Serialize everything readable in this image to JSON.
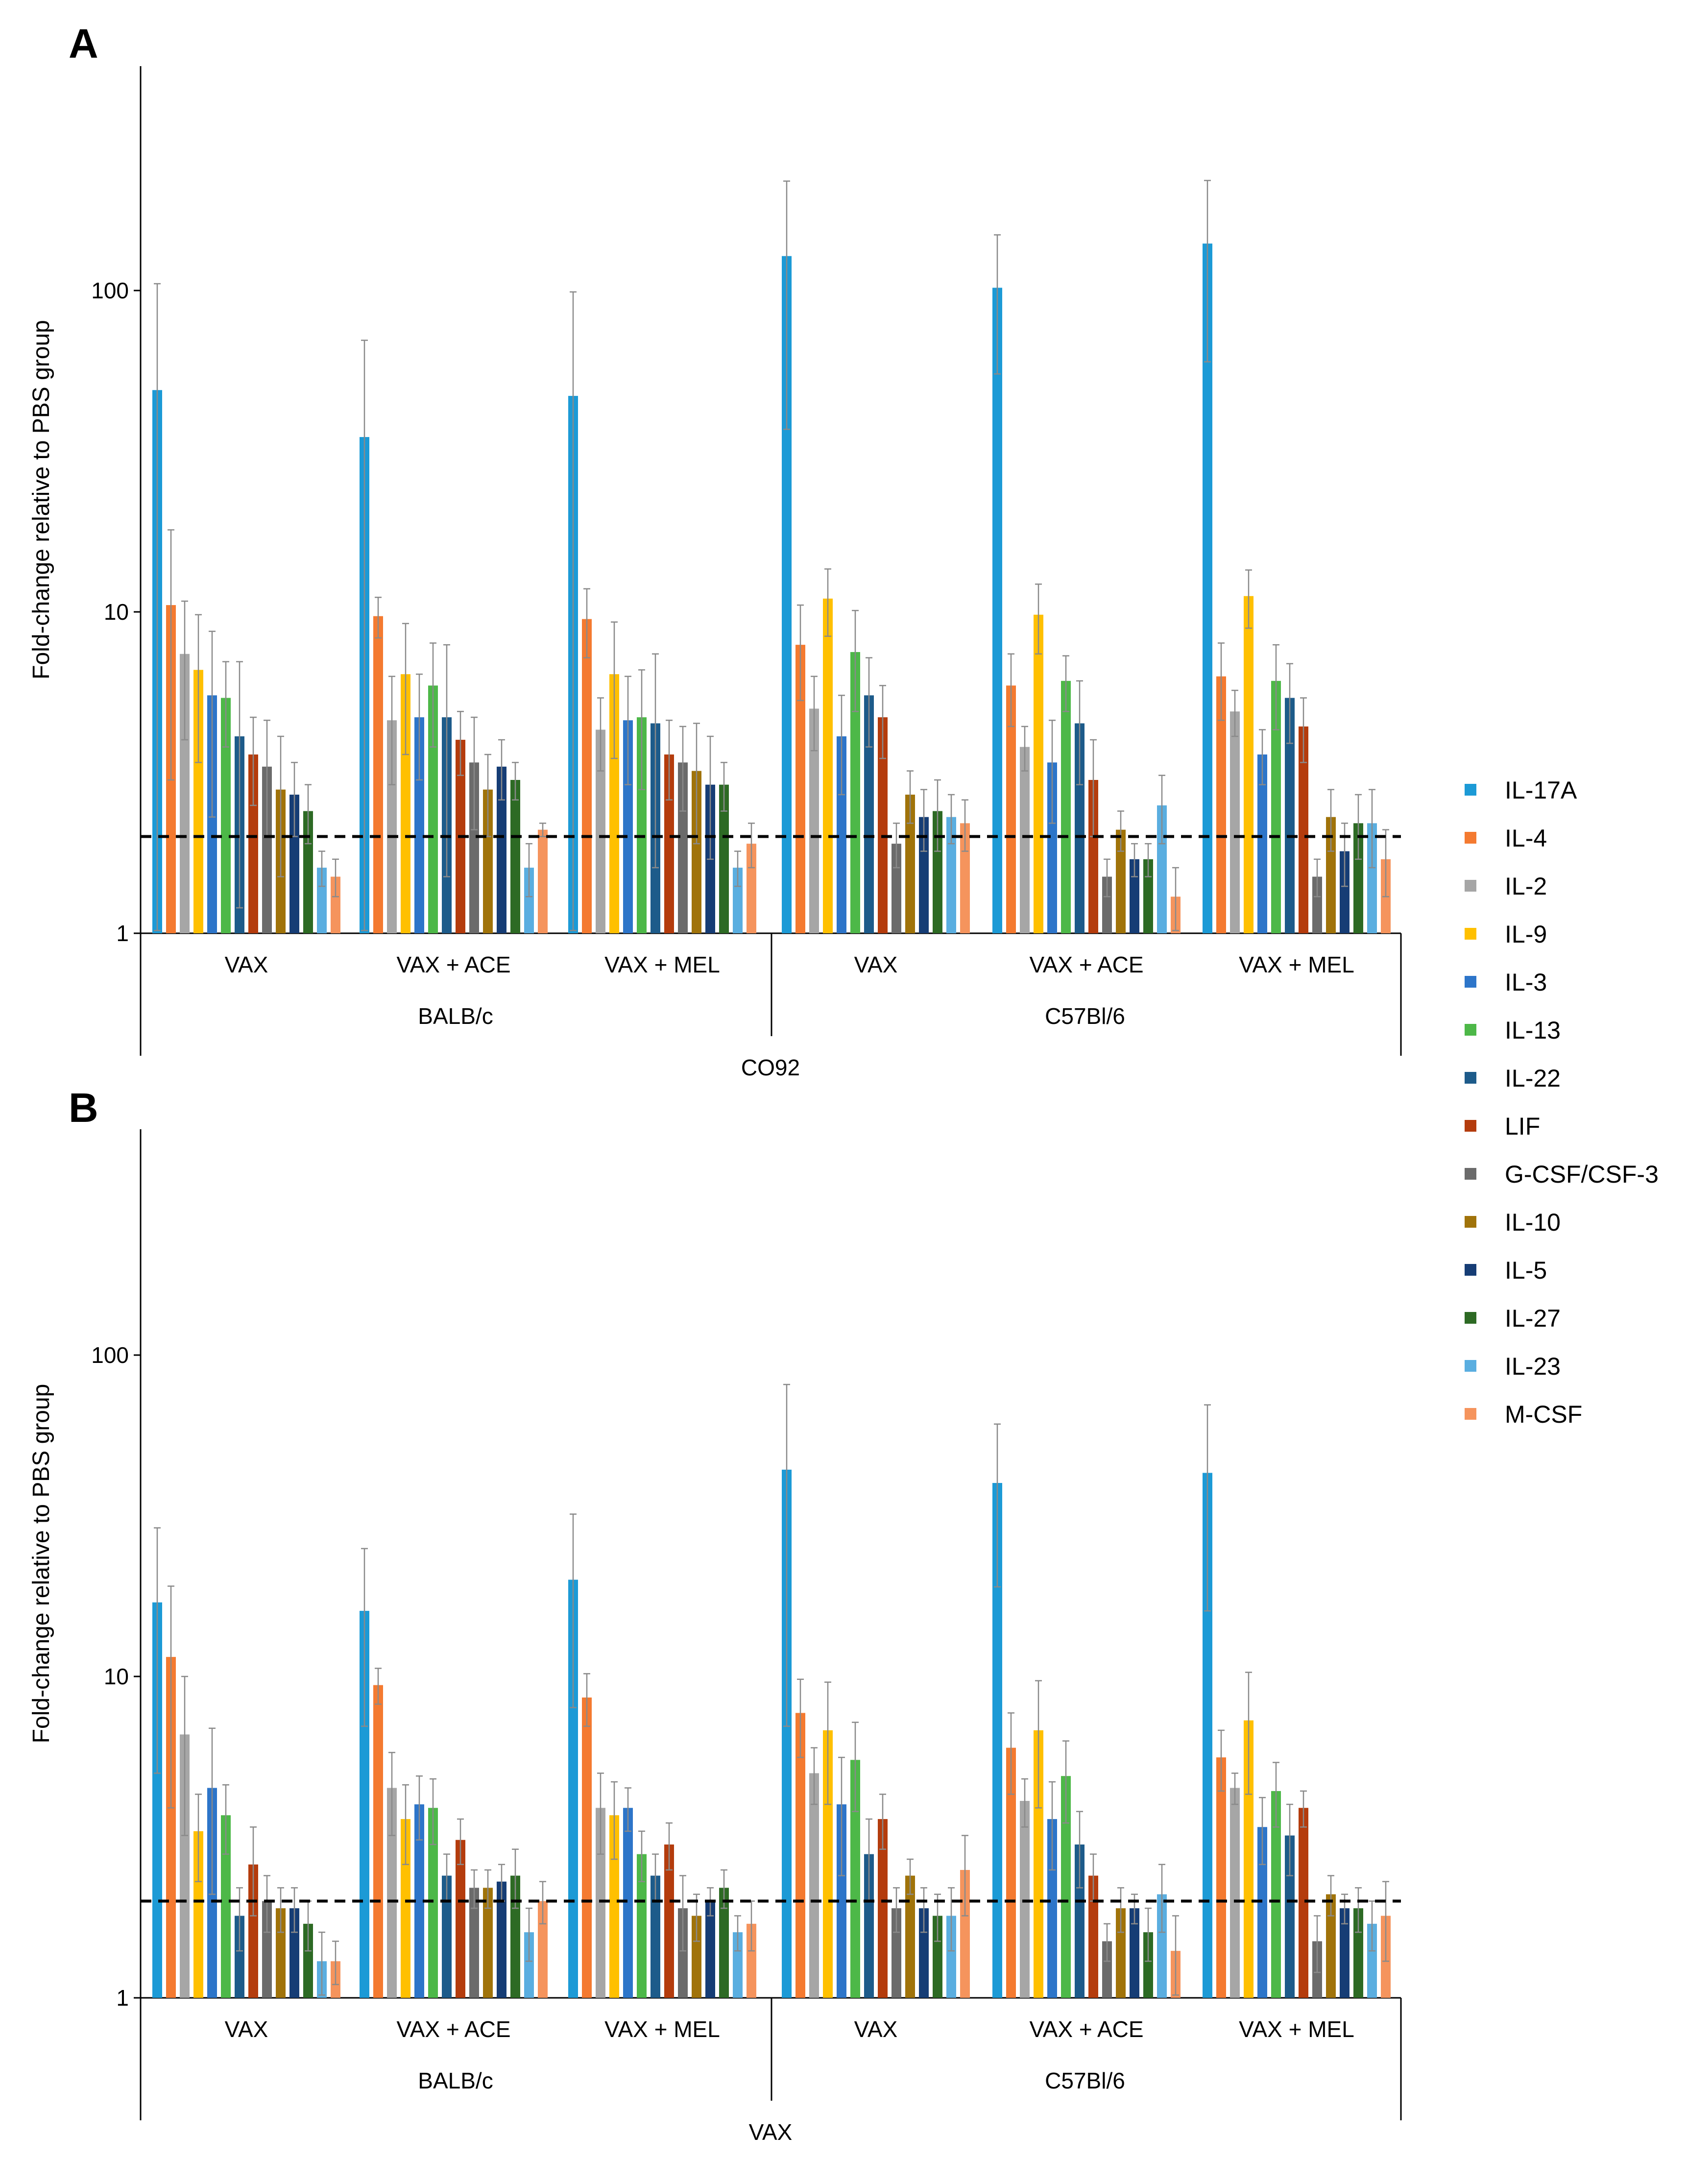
{
  "chart_data": [
    {
      "type": "bar",
      "panel": "A",
      "scale": "log",
      "ylabel": "Fold-change relative to PBS group",
      "ylim": [
        1,
        400
      ],
      "yticks": [
        "1",
        "10",
        "100"
      ],
      "threshold": 2,
      "groups": [
        "VAX",
        "VAX + ACE",
        "VAX + MEL",
        "VAX",
        "VAX + ACE",
        "VAX + MEL"
      ],
      "strains": [
        "BALB/c",
        "C57Bl/6"
      ],
      "condition": "CO92",
      "series": [
        {
          "name": "IL-17A",
          "values": [
            49,
            35,
            47,
            128,
            102,
            140
          ],
          "err": [
            56,
            35,
            52,
            91,
            47,
            80
          ]
        },
        {
          "name": "IL-4",
          "values": [
            10.5,
            9.7,
            9.5,
            7.9,
            5.9,
            6.3
          ],
          "err": [
            7.5,
            1.4,
            2.3,
            2.6,
            1.5,
            1.7
          ]
        },
        {
          "name": "IL-2",
          "values": [
            7.4,
            4.6,
            4.3,
            5.0,
            3.8,
            4.9
          ],
          "err": [
            3.4,
            1.7,
            1.1,
            1.3,
            0.6,
            0.8
          ]
        },
        {
          "name": "IL-9",
          "values": [
            6.6,
            6.4,
            6.4,
            11.0,
            9.8,
            11.2
          ],
          "err": [
            3.2,
            2.8,
            2.9,
            2.6,
            2.4,
            2.3
          ]
        },
        {
          "name": "IL-3",
          "values": [
            5.5,
            4.7,
            4.6,
            4.1,
            3.4,
            3.6
          ],
          "err": [
            3.2,
            1.7,
            1.7,
            1.4,
            1.2,
            0.7
          ]
        },
        {
          "name": "IL-13",
          "values": [
            5.4,
            5.9,
            4.7,
            7.5,
            6.1,
            6.1
          ],
          "err": [
            1.6,
            2.1,
            1.9,
            2.6,
            1.2,
            1.8
          ]
        },
        {
          "name": "IL-22",
          "values": [
            4.1,
            4.7,
            4.5,
            5.5,
            4.5,
            5.4
          ],
          "err": [
            2.9,
            3.2,
            2.9,
            1.7,
            1.6,
            1.5
          ]
        },
        {
          "name": "LIF",
          "values": [
            3.6,
            4.0,
            3.6,
            4.7,
            3.0,
            4.4
          ],
          "err": [
            1.1,
            0.9,
            1.0,
            1.2,
            1.0,
            1.0
          ]
        },
        {
          "name": "G-CSF/CSF-3",
          "values": [
            3.3,
            3.4,
            3.4,
            1.9,
            1.5,
            1.5
          ],
          "err": [
            1.3,
            1.3,
            1.0,
            0.3,
            0.2,
            0.2
          ]
        },
        {
          "name": "IL-10",
          "values": [
            2.8,
            2.8,
            3.2,
            2.7,
            2.1,
            2.3
          ],
          "err": [
            1.3,
            0.8,
            1.3,
            0.5,
            0.3,
            0.5
          ]
        },
        {
          "name": "IL-5",
          "values": [
            2.7,
            3.3,
            2.9,
            2.3,
            1.7,
            1.8
          ],
          "err": [
            0.7,
            0.7,
            1.2,
            0.5,
            0.2,
            0.4
          ]
        },
        {
          "name": "IL-27",
          "values": [
            2.4,
            3.0,
            2.9,
            2.4,
            1.7,
            2.2
          ],
          "err": [
            0.5,
            0.4,
            0.5,
            0.6,
            0.2,
            0.5
          ]
        },
        {
          "name": "IL-23",
          "values": [
            1.6,
            1.6,
            1.6,
            2.3,
            2.5,
            2.2
          ],
          "err": [
            0.2,
            0.3,
            0.2,
            0.4,
            0.6,
            0.6
          ]
        },
        {
          "name": "M-CSF",
          "values": [
            1.5,
            2.1,
            1.9,
            2.2,
            1.3,
            1.7
          ],
          "err": [
            0.2,
            0.1,
            0.3,
            0.4,
            0.3,
            0.4
          ]
        }
      ]
    },
    {
      "type": "bar",
      "panel": "B",
      "scale": "log",
      "ylabel": "Fold-change relative to PBS group",
      "ylim": [
        1,
        400
      ],
      "yticks": [
        "1",
        "10",
        "100"
      ],
      "threshold": 2,
      "groups": [
        "VAX",
        "VAX + ACE",
        "VAX + MEL",
        "VAX",
        "VAX + ACE",
        "VAX + MEL"
      ],
      "strains": [
        "BALB/c",
        "C57Bl/6"
      ],
      "condition": "VAX",
      "series": [
        {
          "name": "IL-17A",
          "values": [
            17,
            16,
            20,
            44,
            40,
            43
          ],
          "err": [
            12,
            9,
            12,
            37,
            21,
            27
          ]
        },
        {
          "name": "IL-4",
          "values": [
            11.5,
            9.4,
            8.6,
            7.7,
            6.0,
            5.6
          ],
          "err": [
            7.6,
            1.2,
            1.6,
            2.1,
            1.7,
            1.2
          ]
        },
        {
          "name": "IL-2",
          "values": [
            6.6,
            4.5,
            3.9,
            5.0,
            4.1,
            4.5
          ],
          "err": [
            3.4,
            1.3,
            1.1,
            1.0,
            0.7,
            0.5
          ]
        },
        {
          "name": "IL-9",
          "values": [
            3.3,
            3.6,
            3.7,
            6.8,
            6.8,
            7.3
          ],
          "err": [
            1.0,
            1.0,
            1.0,
            2.8,
            2.9,
            3.0
          ]
        },
        {
          "name": "IL-3",
          "values": [
            4.5,
            4.0,
            3.9,
            4.0,
            3.6,
            3.4
          ],
          "err": [
            2.4,
            0.9,
            0.6,
            1.6,
            1.1,
            0.8
          ]
        },
        {
          "name": "IL-13",
          "values": [
            3.7,
            3.9,
            2.8,
            5.5,
            4.9,
            4.4
          ],
          "err": [
            0.9,
            0.9,
            0.5,
            1.7,
            1.4,
            1.0
          ]
        },
        {
          "name": "IL-22",
          "values": [
            1.8,
            2.4,
            2.4,
            2.8,
            3.0,
            3.2
          ],
          "err": [
            0.4,
            0.4,
            0.4,
            0.8,
            0.8,
            0.8
          ]
        },
        {
          "name": "LIF",
          "values": [
            2.6,
            3.1,
            3.0,
            3.6,
            2.4,
            3.9
          ],
          "err": [
            0.8,
            0.5,
            0.5,
            0.7,
            0.4,
            0.5
          ]
        },
        {
          "name": "G-CSF/CSF-3",
          "values": [
            2.0,
            2.2,
            1.9,
            1.9,
            1.5,
            1.5
          ],
          "err": [
            0.4,
            0.3,
            0.5,
            0.3,
            0.2,
            0.3
          ]
        },
        {
          "name": "IL-10",
          "values": [
            1.9,
            2.2,
            1.8,
            2.4,
            1.9,
            2.1
          ],
          "err": [
            0.3,
            0.3,
            0.3,
            0.3,
            0.3,
            0.3
          ]
        },
        {
          "name": "IL-5",
          "values": [
            1.9,
            2.3,
            2.0,
            1.9,
            1.9,
            1.9
          ],
          "err": [
            0.3,
            0.3,
            0.2,
            0.3,
            0.2,
            0.2
          ]
        },
        {
          "name": "IL-27",
          "values": [
            1.7,
            2.4,
            2.2,
            1.8,
            1.6,
            1.9
          ],
          "err": [
            0.3,
            0.5,
            0.3,
            0.3,
            0.3,
            0.3
          ]
        },
        {
          "name": "IL-23",
          "values": [
            1.3,
            1.6,
            1.6,
            1.8,
            2.1,
            1.7
          ],
          "err": [
            0.3,
            0.3,
            0.2,
            0.4,
            0.5,
            0.3
          ]
        },
        {
          "name": "M-CSF",
          "values": [
            1.3,
            2.0,
            1.7,
            2.5,
            1.4,
            1.8
          ],
          "err": [
            0.2,
            0.3,
            0.3,
            0.7,
            0.4,
            0.5
          ]
        }
      ]
    }
  ],
  "legend": [
    {
      "label": "IL-17A",
      "color": "#1c9ad6"
    },
    {
      "label": "IL-4",
      "color": "#f47a30"
    },
    {
      "label": "IL-2",
      "color": "#a6a6a6"
    },
    {
      "label": "IL-9",
      "color": "#ffc000"
    },
    {
      "label": "IL-3",
      "color": "#2d75c9"
    },
    {
      "label": "IL-13",
      "color": "#4db848"
    },
    {
      "label": "IL-22",
      "color": "#1d5b8a"
    },
    {
      "label": "LIF",
      "color": "#b43c0d"
    },
    {
      "label": "G-CSF/CSF-3",
      "color": "#6b6b6b"
    },
    {
      "label": "IL-10",
      "color": "#a0730a"
    },
    {
      "label": "IL-5",
      "color": "#163d75"
    },
    {
      "label": "IL-27",
      "color": "#2d6a24"
    },
    {
      "label": "IL-23",
      "color": "#5aaee0"
    },
    {
      "label": "M-CSF",
      "color": "#f5945d"
    }
  ]
}
